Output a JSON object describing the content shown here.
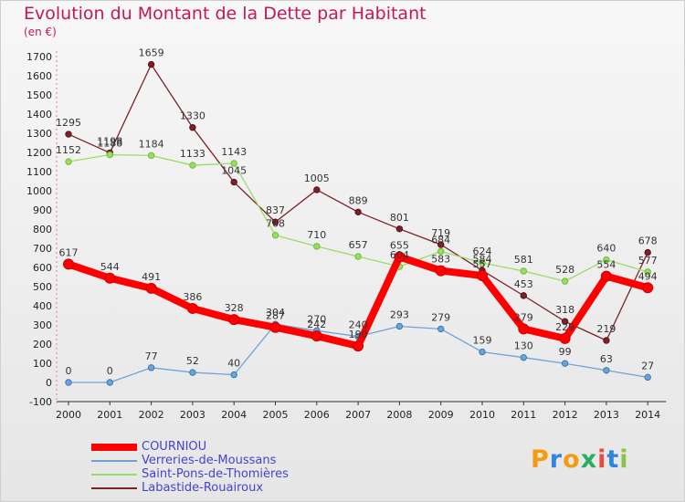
{
  "title": "Evolution du Montant de la Dette par Habitant",
  "subtitle": "(en €)",
  "logo": {
    "letters": [
      "P",
      "r",
      "o",
      "x",
      "i",
      "t",
      "i"
    ],
    "colors": [
      "#f39c12",
      "#2e86de",
      "#f39c12",
      "#27ae60",
      "#e74c3c",
      "#2e86de",
      "#8bc34a"
    ]
  },
  "chart_data": {
    "type": "line",
    "title": "Evolution du Montant de la Dette par Habitant",
    "ylabel": "(en €)",
    "x": [
      "2000",
      "2001",
      "2002",
      "2003",
      "2004",
      "2005",
      "2006",
      "2007",
      "2008",
      "2009",
      "2010",
      "2011",
      "2012",
      "2013",
      "2014"
    ],
    "ylim": [
      -100,
      1700
    ],
    "yticks": [
      -100,
      0,
      100,
      200,
      300,
      400,
      500,
      600,
      700,
      800,
      900,
      1000,
      1100,
      1200,
      1300,
      1400,
      1500,
      1600,
      1700
    ],
    "grid": false,
    "legend_position": "bottom-left",
    "series": [
      {
        "name": "COURNIOU",
        "color": "#ff0000",
        "values": [
          617,
          544,
          491,
          386,
          328,
          287,
          242,
          190,
          655,
          583,
          557,
          279,
          229,
          554,
          494
        ],
        "labels": [
          "617",
          "544",
          "491",
          "386",
          "328",
          "287",
          "242",
          "190",
          "655",
          "583",
          "557",
          "279",
          "229",
          "554",
          "494"
        ]
      },
      {
        "name": "Verreries-de-Moussans",
        "color": "#6fa3d6",
        "values": [
          0,
          0,
          77,
          52,
          40,
          304,
          270,
          240,
          293,
          279,
          159,
          130,
          99,
          63,
          27
        ],
        "labels": [
          "0",
          "0",
          "77",
          "52",
          "40",
          "304",
          "270",
          "240",
          "293",
          "279",
          "159",
          "130",
          "99",
          "63",
          "27"
        ]
      },
      {
        "name": "Saint-Pons-de-Thomières",
        "color": "#99dd66",
        "values": [
          1152,
          1188,
          1184,
          1133,
          1143,
          768,
          710,
          657,
          604,
          684,
          624,
          581,
          528,
          640,
          577
        ],
        "labels": [
          "1152",
          "1188",
          "1184",
          "1133",
          "1143",
          "768",
          "710",
          "657",
          "604",
          "684",
          "624",
          "581",
          "528",
          "640",
          "577"
        ]
      },
      {
        "name": "Labastide-Rouairoux",
        "color": "#7b2226",
        "values": [
          1295,
          1198,
          1659,
          1330,
          1045,
          837,
          1005,
          889,
          801,
          719,
          584,
          453,
          318,
          219,
          678
        ],
        "labels": [
          "1295",
          "1198",
          "1659",
          "1330",
          "1045",
          "837",
          "1005",
          "889",
          "801",
          "719",
          "584",
          "453",
          "318",
          "219",
          "678"
        ]
      }
    ]
  }
}
